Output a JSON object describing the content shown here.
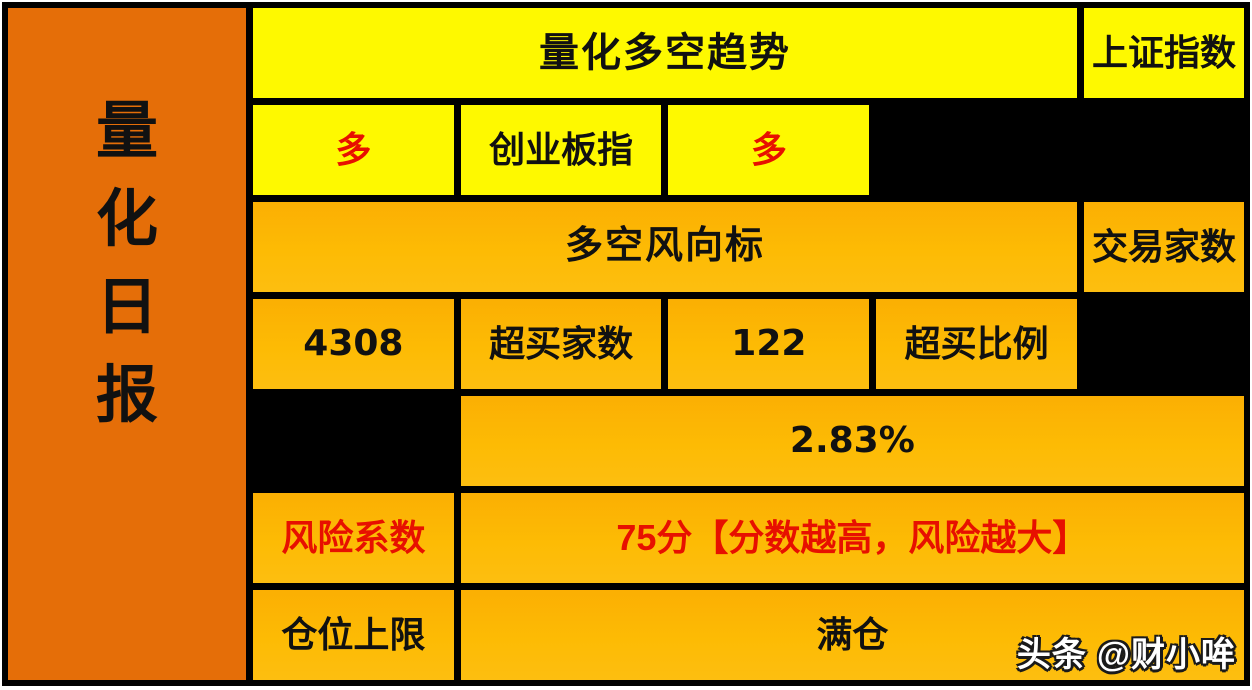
{
  "colors": {
    "sidebar": "#E56E08",
    "yellow": "#FEF900",
    "amber": "#FDBB04",
    "signal_red": "#E71000",
    "border": "#000000"
  },
  "sidebar": {
    "title": "量化日报",
    "chars": [
      "量",
      "化",
      "日",
      "报"
    ]
  },
  "table": {
    "header": "量化多空趋势",
    "index_row": {
      "label1": "上证指数",
      "value1": "多",
      "label2": "创业板指",
      "value2": "多"
    },
    "section_header": "多空风向标",
    "stats_row": {
      "label1": "交易家数",
      "value1": "4308",
      "label2": "超买家数",
      "value2": "122"
    },
    "ratio_row": {
      "label": "超买比例",
      "value": "2.83%"
    },
    "risk_row": {
      "label": "风险系数",
      "value": "75分【分数越高，风险越大】"
    },
    "position_row": {
      "label": "仓位上限",
      "value": "满仓"
    }
  },
  "watermark": {
    "platform": "头条",
    "handle": "@财小哞"
  },
  "chart_data": {
    "type": "table",
    "title": "量化多空趋势",
    "sidebar_title": "量化日报",
    "rows": [
      {
        "cells": [
          "量化多空趋势"
        ],
        "span": "full",
        "style": "yellow-header"
      },
      {
        "cells": [
          "上证指数",
          "多",
          "创业板指",
          "多"
        ],
        "style": "yellow",
        "value_color": "red"
      },
      {
        "cells": [
          "多空风向标"
        ],
        "span": "full",
        "style": "amber-header"
      },
      {
        "cells": [
          "交易家数",
          "4308",
          "超买家数",
          "122"
        ],
        "style": "amber"
      },
      {
        "cells": [
          "超买比例",
          "2.83%"
        ],
        "span": "label+merged",
        "style": "amber"
      },
      {
        "cells": [
          "风险系数",
          "75分【分数越高，风险越大】"
        ],
        "span": "label+merged",
        "style": "amber",
        "text_color": "red"
      },
      {
        "cells": [
          "仓位上限",
          "满仓"
        ],
        "span": "label+merged",
        "style": "amber"
      }
    ],
    "notes": {
      "trading_count": 4308,
      "overbought_count": 122,
      "overbought_ratio_pct": 2.83,
      "risk_score": 75,
      "position_limit": "满仓",
      "sse_signal": "多",
      "chinext_signal": "多"
    }
  }
}
